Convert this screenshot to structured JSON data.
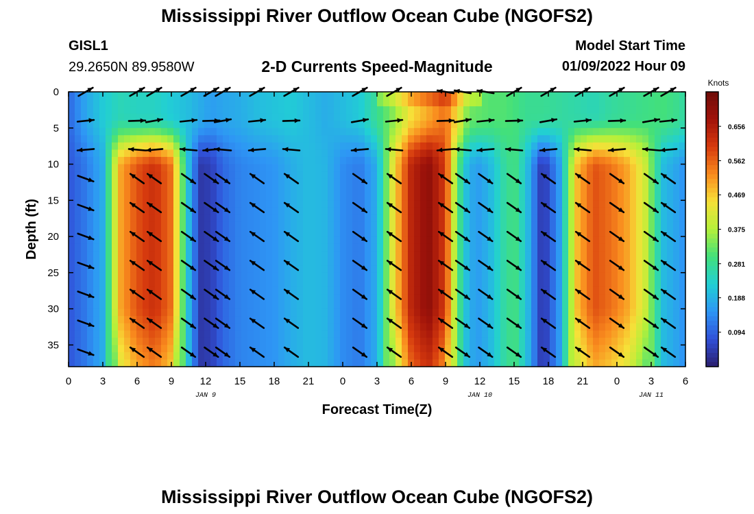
{
  "header": {
    "title": "Mississippi River Outflow Ocean Cube (NGOFS2)",
    "station_id": "GISL1",
    "station_coords": "29.2650N  89.9580W",
    "subtitle": "2-D Currents Speed-Magnitude",
    "model_start_label": "Model Start Time",
    "model_start_value": "01/09/2022 Hour 09"
  },
  "footer": {
    "title": "Mississippi River Outflow Ocean Cube (NGOFS2)"
  },
  "chart_data": {
    "type": "heatmap",
    "title": "2-D Currents Speed-Magnitude",
    "xlabel": "Forecast Time(Z)",
    "ylabel": "Depth (ft)",
    "x_range_hours": [
      0,
      54
    ],
    "x_tick_labels": [
      "0",
      "3",
      "6",
      "9",
      "12",
      "15",
      "18",
      "21",
      "0",
      "3",
      "6",
      "9",
      "12",
      "15",
      "18",
      "21",
      "0",
      "3",
      "6"
    ],
    "date_labels": [
      {
        "hour": 12,
        "text": "JAN 9"
      },
      {
        "hour": 36,
        "text": "JAN 10"
      },
      {
        "hour": 51,
        "text": "JAN 11"
      }
    ],
    "y_range_ft": [
      0,
      38
    ],
    "y_ticks": [
      0,
      5,
      10,
      15,
      20,
      25,
      30,
      35
    ],
    "y_inverted": true,
    "colorbar": {
      "unit": "Knots",
      "ticks": [
        "0.656",
        "0.562",
        "0.469",
        "0.375",
        "0.281",
        "0.188",
        "0.094"
      ],
      "range": [
        0.0,
        0.75
      ],
      "colormap": [
        "#2b1e6e",
        "#3050d8",
        "#2e96f5",
        "#21cfd4",
        "#43e07a",
        "#b4f03a",
        "#f7e038",
        "#f98b1e",
        "#d63a0e",
        "#a0130a",
        "#6e0c08"
      ]
    },
    "speed_profile_knots": {
      "hours": [
        0,
        1.5,
        3,
        4.5,
        6,
        7.5,
        9,
        10.5,
        11.5,
        12.5,
        13.5,
        15,
        16.5,
        18,
        19.5,
        21,
        22.5,
        24,
        25.5,
        27,
        28.5,
        30,
        31.5,
        33,
        34,
        35,
        36,
        37,
        38,
        39,
        40,
        41.5,
        43,
        44.5,
        46,
        47.5,
        49,
        50.5,
        52,
        53.5,
        54
      ],
      "surface": [
        0.1,
        0.17,
        0.22,
        0.25,
        0.24,
        0.24,
        0.22,
        0.2,
        0.18,
        0.16,
        0.17,
        0.18,
        0.2,
        0.21,
        0.22,
        0.2,
        0.18,
        0.2,
        0.22,
        0.28,
        0.35,
        0.45,
        0.5,
        0.55,
        0.45,
        0.33,
        0.32,
        0.31,
        0.31,
        0.3,
        0.28,
        0.28,
        0.27,
        0.26,
        0.25,
        0.27,
        0.28,
        0.29,
        0.3,
        0.28,
        0.26
      ],
      "interior": [
        0.08,
        0.12,
        0.18,
        0.5,
        0.58,
        0.62,
        0.55,
        0.2,
        0.04,
        0.05,
        0.1,
        0.13,
        0.14,
        0.15,
        0.18,
        0.2,
        0.19,
        0.14,
        0.12,
        0.18,
        0.45,
        0.64,
        0.7,
        0.6,
        0.32,
        0.18,
        0.16,
        0.2,
        0.26,
        0.3,
        0.22,
        0.03,
        0.16,
        0.48,
        0.58,
        0.55,
        0.5,
        0.4,
        0.2,
        0.16,
        0.14
      ]
    },
    "vectors": "black arrows showing current direction at grid points"
  }
}
